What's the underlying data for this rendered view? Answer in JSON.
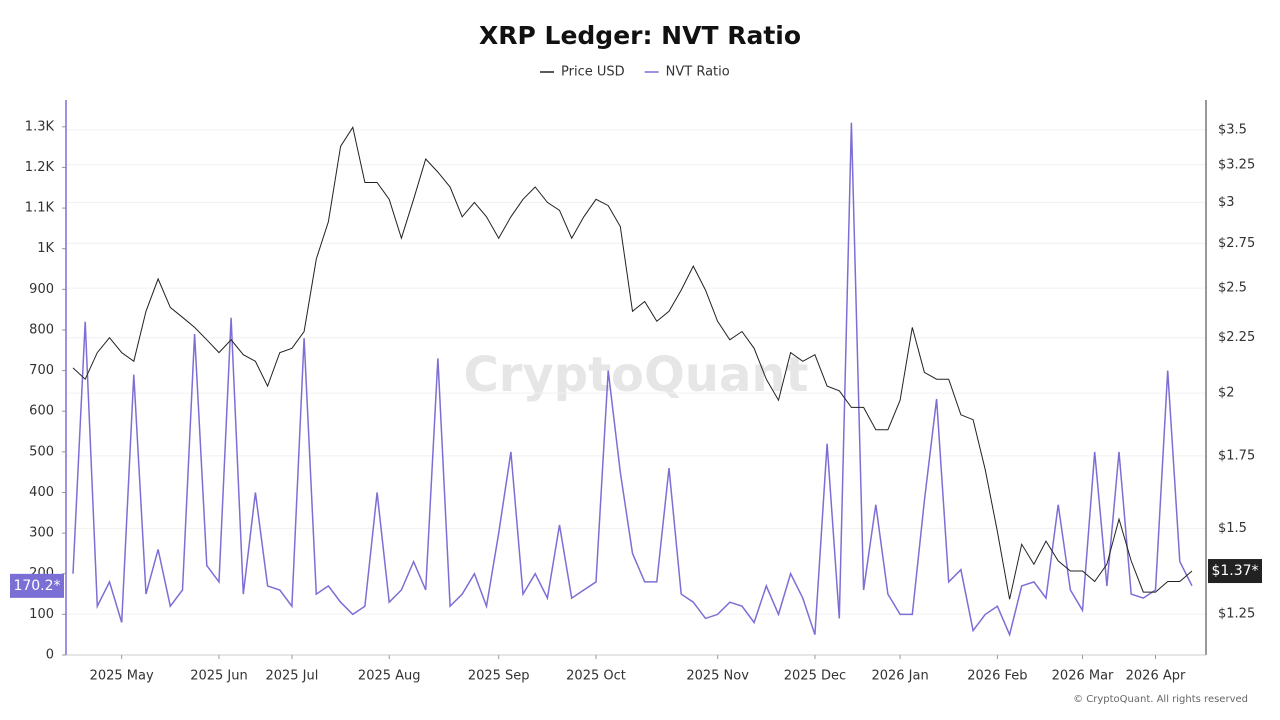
{
  "chart_data": {
    "type": "line",
    "title": "XRP Ledger: NVT Ratio",
    "watermark": "CryptoQuant",
    "footer": "© CryptoQuant. All rights reserved",
    "categories": [
      null,
      null,
      null,
      null,
      "2025 May",
      null,
      null,
      null,
      null,
      null,
      null,
      null,
      "2025 Jun",
      null,
      null,
      null,
      null,
      null,
      "2025 Jul",
      null,
      null,
      null,
      null,
      null,
      null,
      null,
      "2025 Aug",
      null,
      null,
      null,
      null,
      null,
      null,
      null,
      null,
      "2025 Sep",
      null,
      null,
      null,
      null,
      null,
      null,
      null,
      "2025 Oct",
      null,
      null,
      null,
      null,
      null,
      null,
      null,
      null,
      null,
      "2025 Nov",
      null,
      null,
      null,
      null,
      null,
      null,
      null,
      "2025 Dec",
      null,
      null,
      null,
      null,
      null,
      null,
      "2026 Jan",
      null,
      null,
      null,
      null,
      null,
      null,
      null,
      "2026 Feb",
      null,
      null,
      null,
      null,
      null,
      null,
      "2026 Mar",
      null,
      null,
      null,
      null,
      null,
      "2026 Apr",
      null,
      null,
      null
    ],
    "series": [
      {
        "name": "Price USD",
        "color": "#222222",
        "axis": "y2",
        "current_label": "$1.37*",
        "values": [
          2.11,
          2.06,
          2.18,
          2.25,
          2.18,
          2.14,
          2.38,
          2.55,
          2.4,
          2.35,
          2.3,
          2.24,
          2.18,
          2.24,
          2.17,
          2.14,
          2.03,
          2.18,
          2.2,
          2.28,
          2.66,
          2.88,
          3.38,
          3.52,
          3.13,
          3.13,
          3.02,
          2.78,
          3.02,
          3.29,
          3.2,
          3.1,
          2.91,
          3.0,
          2.91,
          2.78,
          2.91,
          3.02,
          3.1,
          3.0,
          2.95,
          2.78,
          2.91,
          3.02,
          2.98,
          2.85,
          2.38,
          2.43,
          2.33,
          2.38,
          2.49,
          2.62,
          2.49,
          2.33,
          2.24,
          2.28,
          2.2,
          2.06,
          1.97,
          2.18,
          2.14,
          2.17,
          2.03,
          2.01,
          1.94,
          1.94,
          1.85,
          1.85,
          1.97,
          2.3,
          2.09,
          2.06,
          2.06,
          1.91,
          1.89,
          1.7,
          1.49,
          1.29,
          1.45,
          1.39,
          1.46,
          1.4,
          1.37,
          1.37,
          1.34,
          1.39,
          1.53,
          1.4,
          1.31,
          1.31,
          1.34,
          1.34,
          1.37
        ]
      },
      {
        "name": "NVT Ratio",
        "color": "#7b6fd6",
        "current_label": "170.2*",
        "values": [
          200,
          820,
          120,
          180,
          80,
          690,
          150,
          260,
          120,
          160,
          790,
          220,
          180,
          830,
          150,
          400,
          170,
          160,
          120,
          780,
          150,
          170,
          130,
          100,
          120,
          400,
          130,
          160,
          230,
          160,
          730,
          120,
          150,
          200,
          120,
          300,
          500,
          150,
          200,
          140,
          320,
          140,
          160,
          180,
          700,
          450,
          250,
          180,
          180,
          460,
          150,
          130,
          90,
          100,
          130,
          120,
          80,
          170,
          100,
          200,
          140,
          50,
          520,
          90,
          1310,
          160,
          370,
          150,
          100,
          100,
          380,
          630,
          180,
          210,
          60,
          100,
          120,
          50,
          170,
          180,
          140,
          370,
          160,
          110,
          500,
          170,
          500,
          150,
          140,
          160,
          700,
          230,
          170.2
        ]
      }
    ],
    "ylim": [
      0,
      1366
    ],
    "yticks": [
      0,
      100,
      200,
      300,
      400,
      500,
      600,
      700,
      800,
      900,
      {
        "value": 1000,
        "label": "1K"
      },
      {
        "value": 1100,
        "label": "1.1K"
      },
      {
        "value": 1200,
        "label": "1.2K"
      },
      {
        "value": 1300,
        "label": "1.3K"
      }
    ],
    "y2lim": [
      1.146,
      3.73
    ],
    "y2scale": "log",
    "y2ticks": [
      {
        "value": 1.25,
        "label": "$1.25"
      },
      {
        "value": 1.5,
        "label": "$1.5"
      },
      {
        "value": 1.75,
        "label": "$1.75"
      },
      {
        "value": 2,
        "label": "$2"
      },
      {
        "value": 2.25,
        "label": "$2.25"
      },
      {
        "value": 2.5,
        "label": "$2.5"
      },
      {
        "value": 2.75,
        "label": "$2.75"
      },
      {
        "value": 3,
        "label": "$3"
      },
      {
        "value": 3.25,
        "label": "$3.25"
      },
      {
        "value": 3.5,
        "label": "$3.5"
      }
    ],
    "grid": true,
    "legend": "top"
  }
}
